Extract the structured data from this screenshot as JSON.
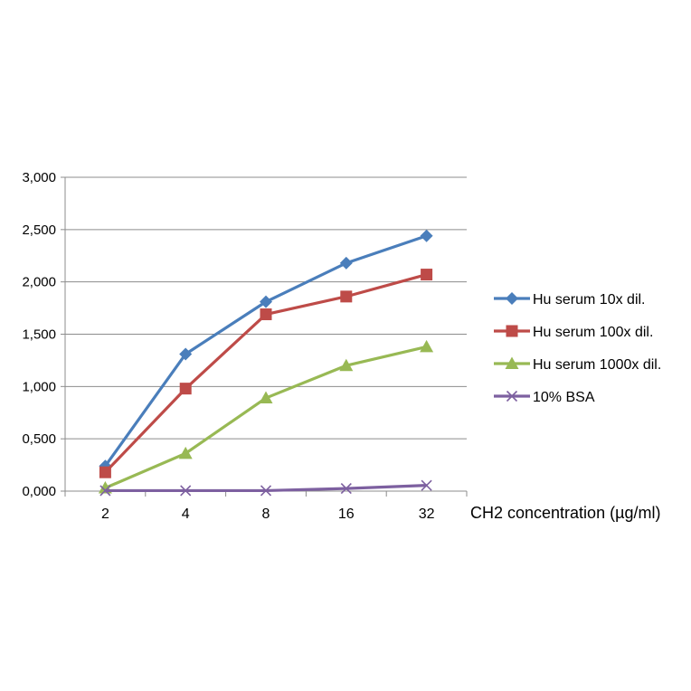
{
  "chart_data": {
    "type": "line",
    "title": "",
    "xlabel": "CH2 concentration (µg/ml)",
    "ylabel": "",
    "categories": [
      "2",
      "4",
      "8",
      "16",
      "32"
    ],
    "ylim": [
      0,
      3000
    ],
    "yticks": [
      "0,000",
      "0,500",
      "1,000",
      "1,500",
      "2,000",
      "2,500",
      "3,000"
    ],
    "grid": true,
    "legend_position": "right",
    "series": [
      {
        "name": "Hu serum 10x dil.",
        "values": [
          240,
          1310,
          1810,
          2180,
          2440
        ],
        "color": "#4a7ebb",
        "marker": "diamond"
      },
      {
        "name": "Hu serum 100x dil.",
        "values": [
          180,
          980,
          1690,
          1860,
          2070
        ],
        "color": "#be4b48",
        "marker": "square"
      },
      {
        "name": "Hu serum 1000x dil.",
        "values": [
          30,
          360,
          890,
          1200,
          1380
        ],
        "color": "#98b954",
        "marker": "triangle"
      },
      {
        "name": "10% BSA",
        "values": [
          5,
          5,
          5,
          25,
          55
        ],
        "color": "#7d60a0",
        "marker": "x"
      }
    ]
  }
}
